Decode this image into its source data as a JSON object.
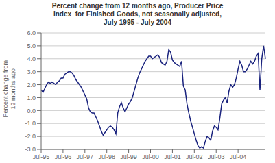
{
  "chart_data": {
    "type": "line",
    "title": "Percent change from 12 months ago, Producer Price\nIndex  for Finished Goods, not seasonally adjusted,\nJuly 1995 - July 2004",
    "y_label": "Percent change from\n12 months ago",
    "categories": [
      "Jul-95",
      null,
      null,
      null,
      null,
      null,
      null,
      null,
      null,
      null,
      null,
      null,
      "Jul-96",
      null,
      null,
      null,
      null,
      null,
      null,
      null,
      null,
      null,
      null,
      null,
      "Jul-97",
      null,
      null,
      null,
      null,
      null,
      null,
      null,
      null,
      null,
      null,
      null,
      "Jul-98",
      null,
      null,
      null,
      null,
      null,
      null,
      null,
      null,
      null,
      null,
      null,
      "Jul-99",
      null,
      null,
      null,
      null,
      null,
      null,
      null,
      null,
      null,
      null,
      null,
      "Jul-00",
      null,
      null,
      null,
      null,
      null,
      null,
      null,
      null,
      null,
      null,
      null,
      "Jul-01",
      null,
      null,
      null,
      null,
      null,
      null,
      null,
      null,
      null,
      null,
      null,
      "Jul-02",
      null,
      null,
      null,
      null,
      null,
      null,
      null,
      null,
      null,
      null,
      null,
      "Jul-03",
      null,
      null,
      null,
      null,
      null,
      null,
      null,
      null,
      null,
      null,
      null,
      "Jul-04",
      null,
      null,
      null,
      null,
      null,
      null,
      null,
      null,
      null,
      null,
      null,
      null,
      null,
      null,
      null
    ],
    "values": [
      1.6,
      1.4,
      1.7,
      2.0,
      2.2,
      2.1,
      2.2,
      2.1,
      2.0,
      2.2,
      2.3,
      2.5,
      2.5,
      2.8,
      2.9,
      3.0,
      3.0,
      2.9,
      2.7,
      2.4,
      2.2,
      2.0,
      1.8,
      1.5,
      1.2,
      0.9,
      0.2,
      -0.1,
      -0.2,
      -0.2,
      -0.5,
      -0.8,
      -1.2,
      -1.6,
      -1.9,
      -1.7,
      -1.5,
      -1.3,
      -1.2,
      -1.3,
      -1.5,
      -1.8,
      -0.2,
      0.3,
      0.6,
      0.2,
      -0.1,
      0.2,
      0.5,
      0.7,
      1.0,
      1.5,
      2.0,
      2.5,
      2.9,
      3.2,
      3.5,
      3.8,
      4.0,
      4.2,
      4.2,
      4.0,
      4.1,
      4.2,
      4.3,
      4.1,
      3.7,
      3.6,
      3.5,
      3.8,
      4.7,
      4.5,
      3.9,
      3.7,
      3.6,
      3.5,
      3.4,
      3.8,
      1.9,
      1.6,
      0.5,
      -0.2,
      -0.8,
      -1.3,
      -1.8,
      -2.3,
      -2.7,
      -2.9,
      -2.8,
      -2.9,
      -2.4,
      -2.0,
      -2.1,
      -2.3,
      -1.6,
      -1.2,
      -1.3,
      -1.5,
      -0.6,
      0.5,
      0.8,
      1.0,
      0.6,
      1.5,
      2.0,
      1.8,
      2.0,
      2.5,
      3.2,
      3.8,
      3.5,
      3.0,
      3.0,
      3.2,
      3.5,
      3.8,
      3.6,
      3.8,
      4.2,
      4.4,
      1.6,
      4.0,
      5.0,
      4.0
    ],
    "color": "#1a237e",
    "ylim": [
      -3.0,
      6.0
    ],
    "yticks": [
      {
        "value": -3.0,
        "label": "-3.0"
      },
      {
        "value": -2.0,
        "label": "-2.0"
      },
      {
        "value": -1.0,
        "label": "-1.0"
      },
      {
        "value": 0.0,
        "label": "0.0"
      },
      {
        "value": 1.0,
        "label": "1.0"
      },
      {
        "value": 2.0,
        "label": "2.0"
      },
      {
        "value": 3.0,
        "label": "3.0"
      },
      {
        "value": 4.0,
        "label": "4.0"
      },
      {
        "value": 5.0,
        "label": "5.0"
      },
      {
        "value": 6.0,
        "label": "6.0"
      }
    ],
    "grid": true
  }
}
